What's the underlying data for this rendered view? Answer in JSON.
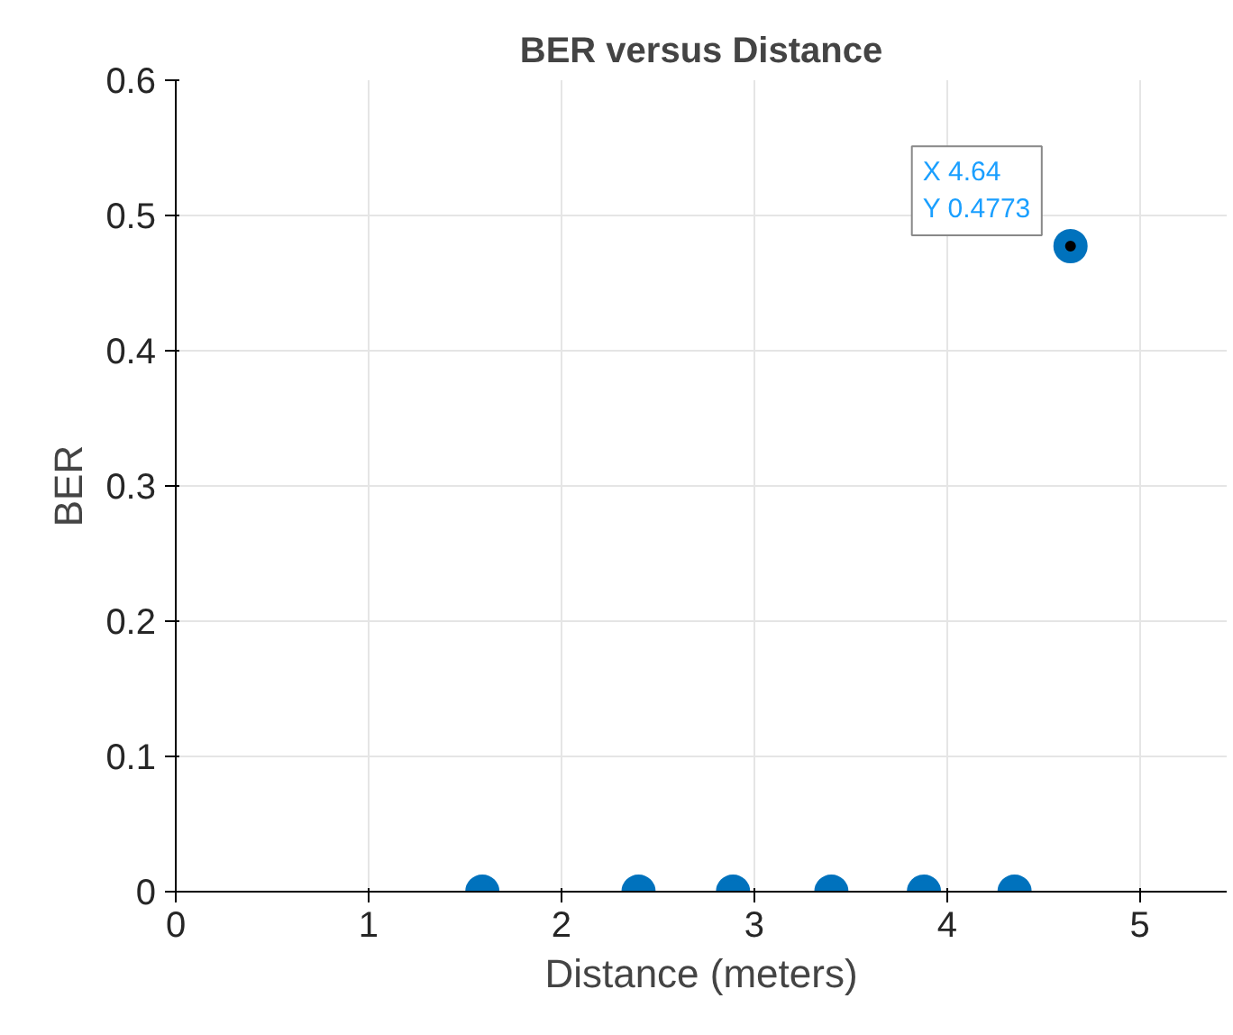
{
  "chart_data": {
    "type": "scatter",
    "title": "BER versus Distance",
    "xlabel": "Distance (meters)",
    "ylabel": "BER",
    "x": [
      1.59,
      2.4,
      2.89,
      3.4,
      3.88,
      4.35,
      4.64
    ],
    "values": [
      0,
      0,
      0,
      0,
      0,
      0,
      0.4773
    ],
    "color": "#0072bd",
    "marker": "circle",
    "xlim": [
      0,
      5.45
    ],
    "xticks": [
      0,
      1,
      2,
      3,
      4,
      5
    ],
    "ylim": [
      0,
      0.6
    ],
    "yticks": [
      0,
      0.1,
      0.2,
      0.3,
      0.4,
      0.5,
      0.6
    ],
    "grid": true,
    "annotations": [
      {
        "text": "X 4.64\nY 0.4773",
        "x": 4.64,
        "y": 0.4773
      }
    ]
  }
}
